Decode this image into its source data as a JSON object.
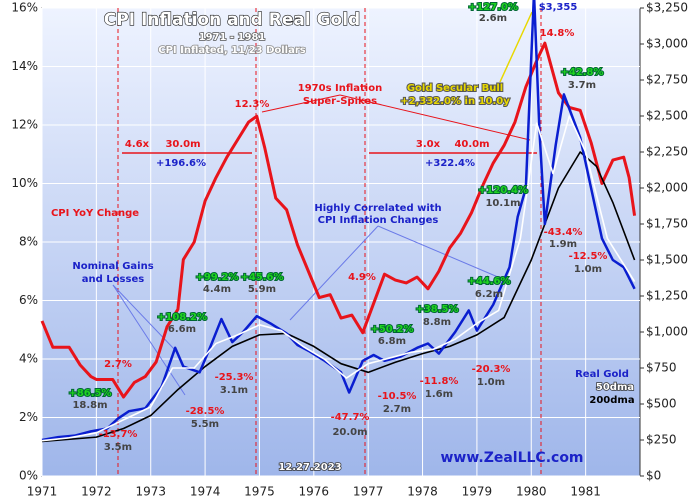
{
  "chart_data": {
    "type": "line",
    "title": "CPI Inflation and Real Gold",
    "subtitle": "1971 - 1981",
    "note": "CPI Inflated, 11/23 Dollars",
    "xlim": [
      1971,
      1982
    ],
    "xticks": [
      1971,
      1972,
      1973,
      1974,
      1975,
      1976,
      1977,
      1978,
      1979,
      1980,
      1981
    ],
    "ylim": [
      0,
      16
    ],
    "yticks": [
      {
        "value": 0,
        "label": "0%"
      },
      {
        "value": 2,
        "label": "2%"
      },
      {
        "value": 4,
        "label": "4%"
      },
      {
        "value": 6,
        "label": "6%"
      },
      {
        "value": 8,
        "label": "8%"
      },
      {
        "value": 10,
        "label": "10%"
      },
      {
        "value": 12,
        "label": "12%"
      },
      {
        "value": 14,
        "label": "14%"
      },
      {
        "value": 16,
        "label": "16%"
      }
    ],
    "y2lim": [
      0,
      3250
    ],
    "y2ticks": [
      {
        "value": 0,
        "label": "$0"
      },
      {
        "value": 250,
        "label": "$250"
      },
      {
        "value": 500,
        "label": "$500"
      },
      {
        "value": 750,
        "label": "$750"
      },
      {
        "value": 1000,
        "label": "$1,000"
      },
      {
        "value": 1250,
        "label": "$1,250"
      },
      {
        "value": 1500,
        "label": "$1,500"
      },
      {
        "value": 1750,
        "label": "$1,750"
      },
      {
        "value": 2000,
        "label": "$2,000"
      },
      {
        "value": 2250,
        "label": "$2,250"
      },
      {
        "value": 2500,
        "label": "$2,500"
      },
      {
        "value": 2750,
        "label": "$2,750"
      },
      {
        "value": 3000,
        "label": "$3,000"
      },
      {
        "value": 3250,
        "label": "$3,250"
      }
    ],
    "grid": true,
    "series": [
      {
        "name": "CPI YoY Change",
        "color": "#e8141b",
        "axis": "y",
        "x": [
          1971.0,
          1971.2,
          1971.5,
          1971.7,
          1971.9,
          1972.0,
          1972.3,
          1972.5,
          1972.7,
          1972.9,
          1973.1,
          1973.3,
          1973.5,
          1973.6,
          1973.8,
          1974.0,
          1974.2,
          1974.4,
          1974.6,
          1974.8,
          1974.95,
          1975.1,
          1975.3,
          1975.5,
          1975.7,
          1975.9,
          1976.1,
          1976.3,
          1976.5,
          1976.7,
          1976.9,
          1977.1,
          1977.3,
          1977.5,
          1977.7,
          1977.9,
          1978.1,
          1978.3,
          1978.5,
          1978.7,
          1978.9,
          1979.1,
          1979.3,
          1979.5,
          1979.7,
          1979.9,
          1980.1,
          1980.25,
          1980.5,
          1980.7,
          1980.9,
          1981.1,
          1981.3,
          1981.5,
          1981.7,
          1981.8,
          1981.9
        ],
        "values": [
          5.3,
          4.4,
          4.4,
          3.8,
          3.4,
          3.3,
          3.3,
          2.7,
          3.2,
          3.4,
          3.9,
          5.1,
          5.7,
          7.4,
          8.0,
          9.4,
          10.2,
          10.9,
          11.5,
          12.1,
          12.3,
          11.2,
          9.5,
          9.1,
          7.9,
          7.0,
          6.1,
          6.2,
          5.4,
          5.5,
          4.9,
          5.9,
          6.9,
          6.7,
          6.6,
          6.8,
          6.4,
          7.0,
          7.8,
          8.3,
          9.0,
          9.9,
          10.7,
          11.3,
          12.1,
          13.3,
          14.2,
          14.8,
          13.1,
          12.6,
          12.5,
          11.4,
          10.0,
          10.8,
          10.9,
          10.2,
          8.9
        ]
      },
      {
        "name": "Real Gold",
        "color": "#0a1ed0",
        "axis": "y2",
        "x": [
          1971.0,
          1971.3,
          1971.6,
          1971.9,
          1972.2,
          1972.4,
          1972.6,
          1972.9,
          1973.2,
          1973.45,
          1973.6,
          1973.9,
          1974.1,
          1974.3,
          1974.5,
          1974.7,
          1974.95,
          1975.2,
          1975.5,
          1975.7,
          1975.9,
          1976.2,
          1976.5,
          1976.65,
          1976.9,
          1977.1,
          1977.3,
          1977.6,
          1977.9,
          1978.1,
          1978.3,
          1978.6,
          1978.85,
          1979.0,
          1979.3,
          1979.6,
          1979.75,
          1979.9,
          1980.05,
          1980.15,
          1980.25,
          1980.45,
          1980.6,
          1980.75,
          1980.9,
          1981.1,
          1981.3,
          1981.5,
          1981.7,
          1981.9
        ],
        "values": [
          250,
          270,
          280,
          310,
          330,
          400,
          450,
          470,
          620,
          890,
          760,
          720,
          900,
          1090,
          930,
          1000,
          1110,
          1060,
          990,
          910,
          870,
          800,
          720,
          580,
          800,
          840,
          800,
          830,
          890,
          920,
          850,
          1000,
          1150,
          1010,
          1190,
          1450,
          1800,
          2000,
          3355,
          2400,
          1750,
          2300,
          2650,
          2500,
          2350,
          2000,
          1650,
          1500,
          1450,
          1300
        ]
      },
      {
        "name": "50dma",
        "color": "#ffffff",
        "axis": "y2",
        "x": [
          1971.0,
          1971.5,
          1972.0,
          1972.5,
          1973.0,
          1973.4,
          1973.8,
          1974.2,
          1974.6,
          1975.0,
          1975.4,
          1975.8,
          1976.2,
          1976.6,
          1977.0,
          1977.4,
          1977.8,
          1978.2,
          1978.6,
          1979.0,
          1979.4,
          1979.8,
          1980.1,
          1980.4,
          1980.7,
          1981.0,
          1981.4,
          1981.9
        ],
        "values": [
          245,
          265,
          300,
          390,
          480,
          750,
          750,
          920,
          980,
          1050,
          1010,
          900,
          810,
          680,
          780,
          820,
          860,
          880,
          950,
          1060,
          1150,
          1650,
          2450,
          2100,
          2500,
          2250,
          1650,
          1350
        ]
      },
      {
        "name": "200dma",
        "color": "#000000",
        "axis": "y2",
        "x": [
          1971.0,
          1972.0,
          1972.5,
          1973.0,
          1973.5,
          1974.0,
          1974.5,
          1975.0,
          1975.5,
          1976.0,
          1976.5,
          1977.0,
          1977.5,
          1978.0,
          1978.5,
          1979.0,
          1979.5,
          1980.0,
          1980.5,
          1980.9,
          1981.2,
          1981.5,
          1981.9
        ],
        "values": [
          240,
          270,
          330,
          420,
          600,
          760,
          900,
          980,
          990,
          900,
          780,
          720,
          790,
          850,
          900,
          980,
          1100,
          1500,
          2000,
          2250,
          2150,
          1900,
          1500
        ]
      }
    ],
    "annotations": [
      "+86.5%",
      "18.8m",
      "-13.7%",
      "3.5m",
      "2.7%",
      "+108.2%",
      "6.6m",
      "-28.5%",
      "5.5m",
      "+99.2%",
      "4.4m",
      "-25.3%",
      "3.1m",
      "+45.6%",
      "5.9m",
      "12.3%",
      "4.6x",
      "30.0m",
      "+196.6%",
      "1970s Inflation",
      "Super-Spikes",
      "Nominal Gains",
      "and Losses",
      "Highly Correlated with",
      "CPI Inflation Changes",
      "4.9%",
      "+50.2%",
      "6.8m",
      "-47.7%",
      "20.0m",
      "-10.5%",
      "2.7m",
      "+38.5%",
      "8.8m",
      "-11.8%",
      "1.6m",
      "+44.6%",
      "6.2m",
      "-20.3%",
      "1.0m",
      "3.0x",
      "40.0m",
      "+322.4%",
      "+120.4%",
      "10.1m",
      "+127.0%",
      "2.6m",
      "$3,355",
      "14.8%",
      "Gold Secular Bull",
      "+2,332.0% in 10.0y",
      "+42.8%",
      "3.7m",
      "-43.4%",
      "1.9m",
      "-12.5%",
      "1.0m",
      "www.ZealLLC.com",
      "12.27.2023"
    ]
  }
}
